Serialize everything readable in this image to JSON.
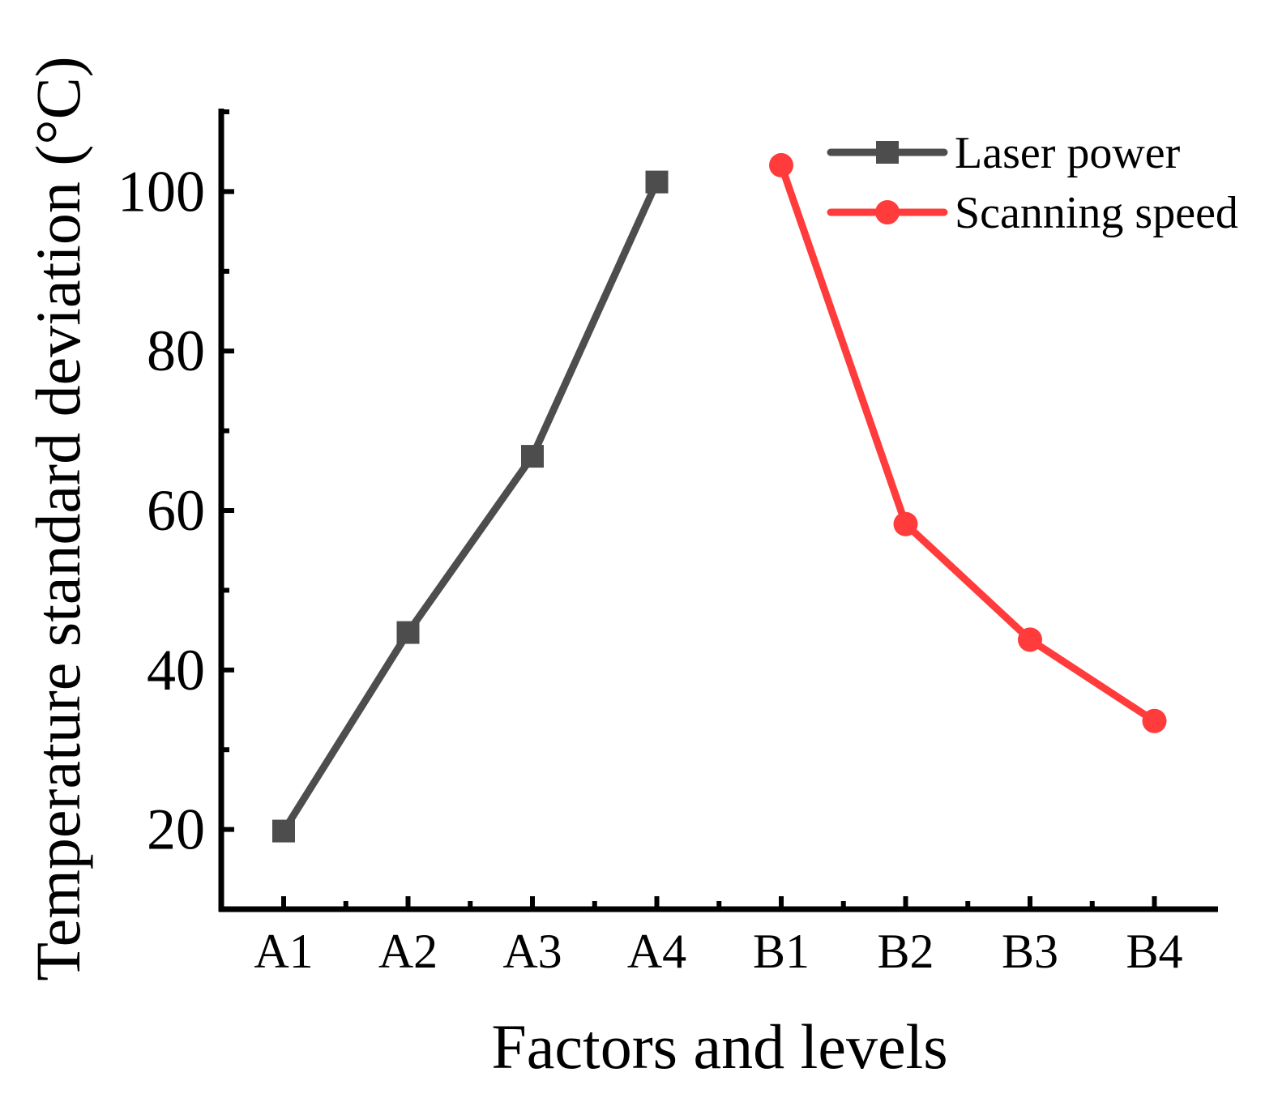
{
  "chart_data": {
    "type": "line",
    "title": "",
    "xlabel": "Factors and levels",
    "ylabel": "Temperature standard deviation (°C)",
    "categories": [
      "A1",
      "A2",
      "A3",
      "A4",
      "B1",
      "B2",
      "B3",
      "B4"
    ],
    "ylim": [
      10,
      110
    ],
    "yticks": [
      20,
      40,
      60,
      80,
      100
    ],
    "grid": false,
    "legend_position": "top-right",
    "series": [
      {
        "name": "Laser power",
        "color": "#4d4d4d",
        "marker": "square",
        "x": [
          "A1",
          "A2",
          "A3",
          "A4"
        ],
        "values": [
          19.8,
          44.7,
          66.8,
          101.2
        ]
      },
      {
        "name": "Scanning speed",
        "color": "#ff3b3b",
        "marker": "circle",
        "x": [
          "B1",
          "B2",
          "B3",
          "B4"
        ],
        "values": [
          103.3,
          58.3,
          43.8,
          33.6
        ]
      }
    ]
  }
}
